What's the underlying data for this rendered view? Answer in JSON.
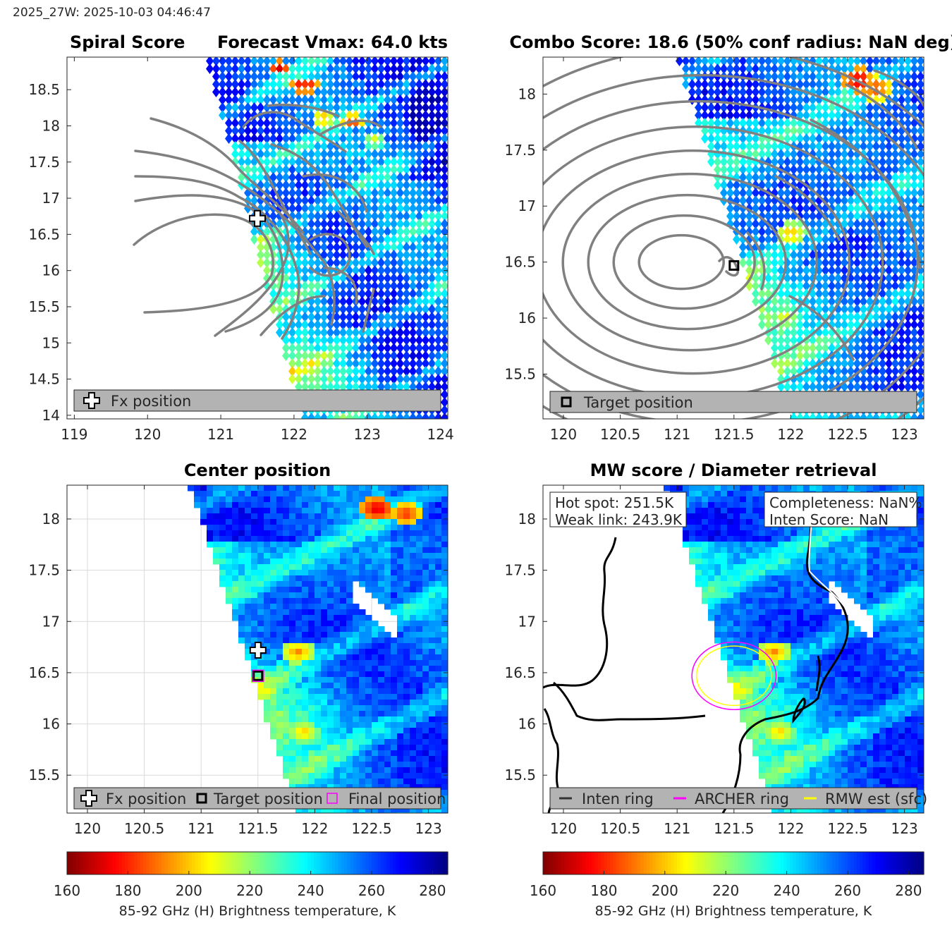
{
  "header": {
    "timestamp": "2025_27W: 2025-10-03 04:46:47"
  },
  "colors": {
    "contour": "#808080",
    "coastline": "#000000",
    "archer_ring": "#ff00ff",
    "rmw_ring": "#ffff00",
    "legend_bg": "#b3b3b3",
    "colormap": "jet_reversed"
  },
  "chart_data": [
    {
      "type": "heatmap",
      "panel": "spiral-score",
      "title_left": "Spiral Score",
      "title_right": "Forecast Vmax: 64.0 kts",
      "xlim": [
        118.9,
        124.1
      ],
      "ylim": [
        13.95,
        18.95
      ],
      "xticks": [
        "119",
        "120",
        "121",
        "122",
        "123",
        "124"
      ],
      "yticks": [
        "14",
        "14.5",
        "15",
        "15.5",
        "16",
        "16.5",
        "17",
        "17.5",
        "18",
        "18.5"
      ],
      "grid": false,
      "swath_edge": {
        "top_lon": 120.8,
        "bottom_lon": 122.1
      },
      "cold_spots": [
        {
          "lon": 121.8,
          "lat": 18.8,
          "tb": 168
        },
        {
          "lon": 122.1,
          "lat": 18.55,
          "tb": 170
        },
        {
          "lon": 122.2,
          "lat": 18.55,
          "tb": 172
        },
        {
          "lon": 122.8,
          "lat": 18.05,
          "tb": 178
        },
        {
          "lon": 122.4,
          "lat": 18.1,
          "tb": 190
        },
        {
          "lon": 123.1,
          "lat": 17.8,
          "tb": 205
        }
      ],
      "markers": [
        {
          "name": "Fx position",
          "symbol": "cross",
          "lon": 121.5,
          "lat": 16.72
        }
      ],
      "legend": {
        "location": "bottom",
        "entries": [
          "Fx position"
        ]
      }
    },
    {
      "type": "heatmap",
      "panel": "combo-score",
      "title": "Combo Score: 18.6  (50% conf radius: NaN deg)",
      "xlim": [
        119.82,
        123.17
      ],
      "ylim": [
        15.1,
        18.33
      ],
      "xticks": [
        "120",
        "120.5",
        "121",
        "121.5",
        "122",
        "122.5",
        "123"
      ],
      "yticks": [
        "15.5",
        "16",
        "16.5",
        "17",
        "17.5",
        "18"
      ],
      "grid": false,
      "swath_edge": {
        "top_lon": 121.0,
        "bottom_lon": 122.0
      },
      "cold_spots": [
        {
          "lon": 122.6,
          "lat": 18.12,
          "tb": 168
        },
        {
          "lon": 122.75,
          "lat": 18.05,
          "tb": 172
        },
        {
          "lon": 122.0,
          "lat": 16.75,
          "tb": 195
        },
        {
          "lon": 121.95,
          "lat": 16.0,
          "tb": 205
        }
      ],
      "contour_center": {
        "lon": 121.0,
        "lat": 16.5
      },
      "markers": [
        {
          "name": "Target position",
          "symbol": "square",
          "lon": 121.5,
          "lat": 16.47
        }
      ],
      "legend": {
        "location": "bottom",
        "entries": [
          "Target position"
        ]
      }
    },
    {
      "type": "heatmap",
      "panel": "center-position",
      "title": "Center position",
      "xlim": [
        119.82,
        123.17
      ],
      "ylim": [
        15.13,
        18.33
      ],
      "xticks": [
        "120",
        "120.5",
        "121",
        "121.5",
        "122",
        "122.5",
        "123"
      ],
      "yticks": [
        "15.5",
        "16",
        "16.5",
        "17",
        "17.5",
        "18"
      ],
      "grid": true,
      "swath_edge": {
        "top_lon": 120.9,
        "bottom_lon": 121.85
      },
      "cold_spots": [
        {
          "lon": 122.55,
          "lat": 18.1,
          "tb": 168
        },
        {
          "lon": 122.8,
          "lat": 18.05,
          "tb": 170
        },
        {
          "lon": 121.85,
          "lat": 16.7,
          "tb": 190
        },
        {
          "lon": 121.9,
          "lat": 15.92,
          "tb": 198
        }
      ],
      "masked_strip": {
        "lon": [
          122.35,
          122.75
        ],
        "lat": [
          17.3,
          16.9
        ]
      },
      "markers": [
        {
          "name": "Fx position",
          "symbol": "cross",
          "lon": 121.5,
          "lat": 16.72
        },
        {
          "name": "Target position",
          "symbol": "square",
          "lon": 121.5,
          "lat": 16.47
        },
        {
          "name": "Final position",
          "symbol": "square-magenta",
          "lon": 121.5,
          "lat": 16.47
        }
      ],
      "legend": {
        "location": "bottom",
        "entries": [
          "Fx position",
          "Target position",
          "Final position"
        ]
      }
    },
    {
      "type": "heatmap",
      "panel": "mw-score",
      "title": "MW score / Diameter retrieval",
      "xlim": [
        119.82,
        123.17
      ],
      "ylim": [
        15.13,
        18.33
      ],
      "xticks": [
        "120",
        "120.5",
        "121",
        "121.5",
        "122",
        "122.5",
        "123"
      ],
      "yticks": [
        "15.5",
        "16",
        "16.5",
        "17",
        "17.5",
        "18"
      ],
      "grid": false,
      "swath_edge": {
        "top_lon": 120.9,
        "bottom_lon": 121.85
      },
      "cold_spots": [
        {
          "lon": 121.85,
          "lat": 16.7,
          "tb": 190
        },
        {
          "lon": 121.9,
          "lat": 15.92,
          "tb": 198
        }
      ],
      "masked_strip": {
        "lon": [
          122.35,
          122.75
        ],
        "lat": [
          17.3,
          16.9
        ]
      },
      "rings": [
        {
          "name": "ARCHER ring",
          "lon": 121.5,
          "lat": 16.47,
          "rx": 0.37,
          "ry": 0.33
        },
        {
          "name": "RMW est (sfc)",
          "lon": 121.5,
          "lat": 16.47,
          "rx": 0.33,
          "ry": 0.29
        }
      ],
      "info_left": [
        "Hot spot: 251.5K",
        "Weak link: 243.9K"
      ],
      "info_right": [
        "Completeness: NaN%",
        "Inten Score: NaN"
      ],
      "legend": {
        "location": "bottom",
        "entries": [
          "Inten ring",
          "ARCHER ring",
          "RMW est (sfc)"
        ]
      }
    },
    {
      "type": "colorbar",
      "label": "85-92 GHz (H) Brightness temperature, K",
      "range": [
        160,
        285
      ],
      "ticks": [
        "160",
        "180",
        "200",
        "220",
        "240",
        "260",
        "280"
      ]
    }
  ]
}
